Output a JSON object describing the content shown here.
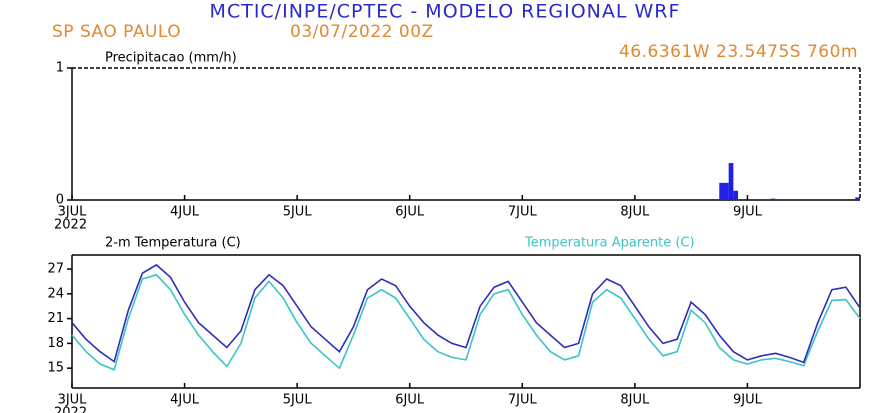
{
  "header": {
    "title": "MCTIC/INPE/CPTEC - MODELO REGIONAL WRF",
    "location": "SP SAO PAULO",
    "date": "03/07/2022 00Z",
    "coords": "46.6361W 23.5475S 760m"
  },
  "chart_data": [
    {
      "type": "bar",
      "title": "Precipitacao (mm/h)",
      "color": "#1f1fe6",
      "x": [
        138,
        139,
        140,
        141,
        149,
        167
      ],
      "values": [
        0.13,
        0.13,
        0.28,
        0.07,
        0.01,
        0.02
      ],
      "xlim": [
        0,
        168
      ],
      "ylim": [
        0,
        1
      ],
      "yticks": [
        0,
        1
      ],
      "xticks": [
        {
          "value": 0,
          "label": "3JUL"
        },
        {
          "value": 24,
          "label": "4JUL"
        },
        {
          "value": 48,
          "label": "5JUL"
        },
        {
          "value": 72,
          "label": "6JUL"
        },
        {
          "value": 96,
          "label": "7JUL"
        },
        {
          "value": 120,
          "label": "8JUL"
        },
        {
          "value": 144,
          "label": "9JUL"
        }
      ],
      "year_label": "2022"
    },
    {
      "type": "line",
      "x": [
        0,
        3,
        6,
        9,
        12,
        15,
        18,
        21,
        24,
        27,
        30,
        33,
        36,
        39,
        42,
        45,
        48,
        51,
        54,
        57,
        60,
        63,
        66,
        69,
        72,
        75,
        78,
        81,
        84,
        87,
        90,
        93,
        96,
        99,
        102,
        105,
        108,
        111,
        114,
        117,
        120,
        123,
        126,
        129,
        132,
        135,
        138,
        141,
        144,
        147,
        150,
        153,
        156,
        159,
        162,
        165,
        168
      ],
      "series": [
        {
          "name": "2-m Temperatura (C)",
          "color": "#2e2eb8",
          "values": [
            20.5,
            18.5,
            17,
            15.8,
            22,
            26.5,
            27.5,
            26,
            23,
            20.5,
            19,
            17.5,
            19.5,
            24.5,
            26.3,
            25,
            22.5,
            20,
            18.5,
            17,
            20,
            24.5,
            25.8,
            25,
            22.5,
            20.5,
            19,
            18,
            17.5,
            22.5,
            24.8,
            25.5,
            23,
            20.5,
            19,
            17.5,
            18,
            24,
            25.8,
            25,
            22.5,
            20,
            18,
            18.5,
            23,
            21.5,
            19,
            17,
            16,
            16.5,
            16.8,
            16.3,
            15.7,
            20.5,
            24.5,
            24.8,
            22.3
          ]
        },
        {
          "name": "Temperatura Aparente (C)",
          "color": "#3cc4c4",
          "values": [
            19,
            17,
            15.5,
            14.8,
            21,
            25.8,
            26.3,
            24.5,
            21.5,
            19,
            17,
            15.2,
            18,
            23.5,
            25.5,
            23.5,
            20.5,
            18,
            16.5,
            15,
            19,
            23.5,
            24.5,
            23.5,
            21,
            18.5,
            17,
            16.3,
            16,
            21.5,
            24,
            24.5,
            21.5,
            19,
            17,
            16,
            16.5,
            23,
            24.5,
            23.5,
            21,
            18.5,
            16.5,
            17,
            22,
            20.5,
            17.5,
            16,
            15.5,
            16,
            16.2,
            15.8,
            15.3,
            19.5,
            23.2,
            23.3,
            21
          ]
        }
      ],
      "xlim": [
        0,
        168
      ],
      "ylim": [
        12.6,
        28.7
      ],
      "yticks": [
        15,
        18,
        21,
        24,
        27
      ],
      "xticks": [
        {
          "value": 0,
          "label": "3JUL"
        },
        {
          "value": 24,
          "label": "4JUL"
        },
        {
          "value": 48,
          "label": "5JUL"
        },
        {
          "value": 72,
          "label": "6JUL"
        },
        {
          "value": 96,
          "label": "7JUL"
        },
        {
          "value": 120,
          "label": "8JUL"
        },
        {
          "value": 144,
          "label": "9JUL"
        }
      ],
      "year_label": "2022"
    }
  ]
}
